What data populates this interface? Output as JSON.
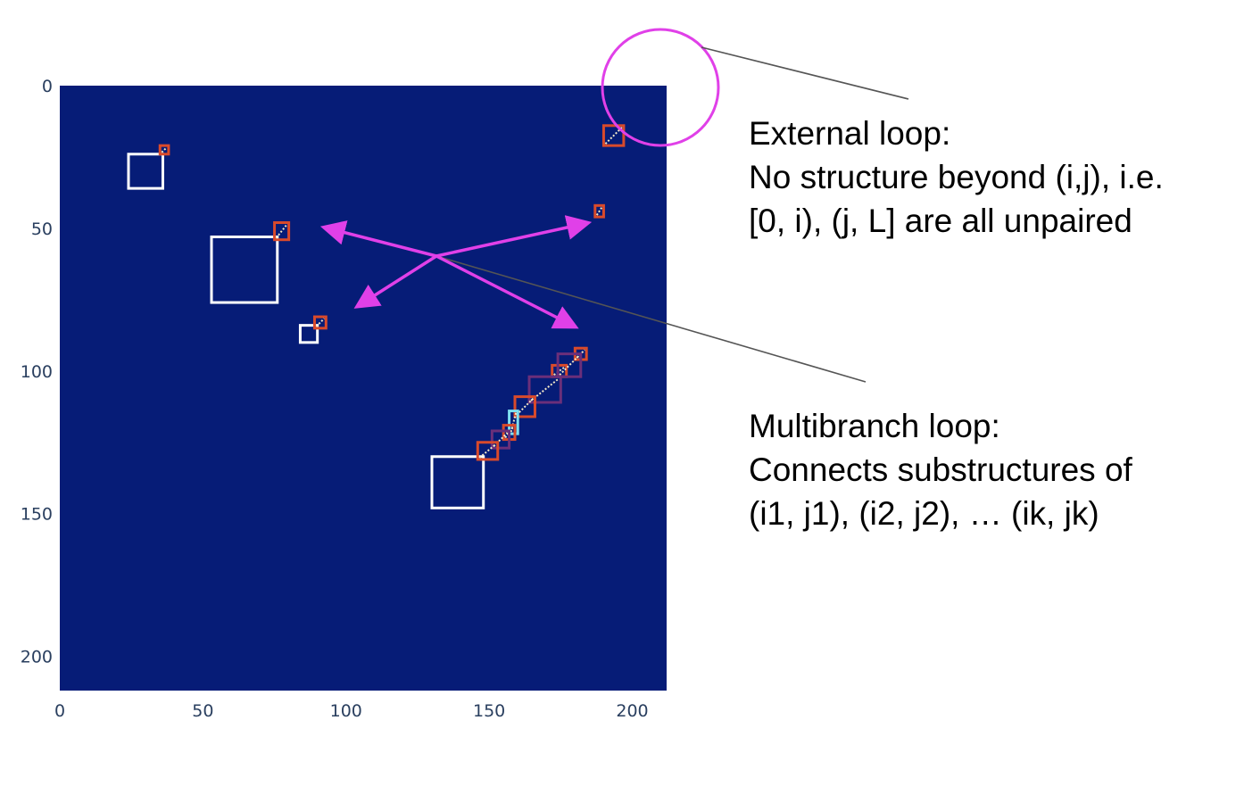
{
  "chart_data": {
    "type": "heatmap",
    "x_range": [
      0,
      212
    ],
    "y_range": [
      0,
      212
    ],
    "y_reversed": true,
    "x_ticks": [
      0,
      50,
      100,
      150,
      200
    ],
    "y_ticks": [
      0,
      50,
      100,
      150,
      200
    ],
    "x_tick_labels": [
      "0",
      "50",
      "100",
      "150",
      "200"
    ],
    "y_tick_labels": [
      "0",
      "50",
      "100",
      "150",
      "200"
    ],
    "background_color": "#061c77",
    "grid": false,
    "white_boxes": [
      {
        "x0": 24,
        "x1": 36,
        "y0": 24,
        "y1": 36
      },
      {
        "x0": 53,
        "x1": 76,
        "y0": 53,
        "y1": 76
      },
      {
        "x0": 84,
        "x1": 90,
        "y0": 84,
        "y1": 90
      },
      {
        "x0": 130,
        "x1": 148,
        "y0": 130,
        "y1": 148
      }
    ],
    "helices": [
      {
        "x0": 35,
        "x1": 38,
        "y0": 21,
        "y1": 24,
        "color": "#d94a2b"
      },
      {
        "x0": 190,
        "x1": 197,
        "y0": 14,
        "y1": 21,
        "color": "#d94a2b"
      },
      {
        "x0": 187,
        "x1": 190,
        "y0": 42,
        "y1": 46,
        "color": "#d94a2b"
      },
      {
        "x0": 75,
        "x1": 80,
        "y0": 48,
        "y1": 54,
        "color": "#d94a2b"
      },
      {
        "x0": 89,
        "x1": 93,
        "y0": 81,
        "y1": 85,
        "color": "#d94a2b"
      },
      {
        "x0": 180,
        "x1": 184,
        "y0": 92,
        "y1": 96,
        "color": "#d94a2b"
      },
      {
        "x0": 172,
        "x1": 177,
        "y0": 98,
        "y1": 102,
        "color": "#d94a2b"
      },
      {
        "x0": 174,
        "x1": 182,
        "y0": 94,
        "y1": 102,
        "color": "#6b2f7a"
      },
      {
        "x0": 164,
        "x1": 175,
        "y0": 102,
        "y1": 111,
        "color": "#6b2f7a"
      },
      {
        "x0": 159,
        "x1": 166,
        "y0": 109,
        "y1": 116,
        "color": "#d94a2b"
      },
      {
        "x0": 157,
        "x1": 160,
        "y0": 114,
        "y1": 122,
        "color": "#7ee0f0"
      },
      {
        "x0": 155,
        "x1": 159,
        "y0": 119,
        "y1": 124,
        "color": "#d94a2b"
      },
      {
        "x0": 151,
        "x1": 157,
        "y0": 121,
        "y1": 127,
        "color": "#6b2f7a"
      },
      {
        "x0": 146,
        "x1": 153,
        "y0": 125,
        "y1": 131,
        "color": "#d94a2b"
      }
    ]
  },
  "annotations": {
    "external_loop": {
      "line1": "External loop:",
      "line2": "No structure beyond (i,j), i.e.",
      "line3": "[0, i), (j, L] are all unpaired"
    },
    "multibranch_loop": {
      "line1": "Multibranch loop:",
      "line2": "Connects substructures of",
      "line3": "(i1, j1), (i2, j2), … (ik, jk)"
    },
    "circle_color": "#e040e8",
    "arrow_color": "#e040e8",
    "leader_color": "#555555"
  }
}
